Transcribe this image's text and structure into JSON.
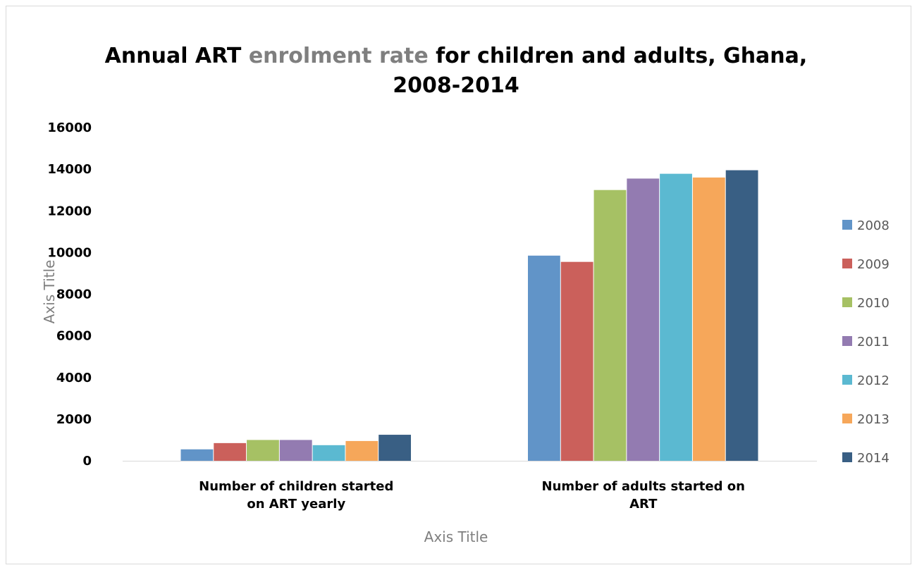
{
  "chart_data": {
    "type": "bar",
    "title_parts": [
      "Annual ART ",
      "enrolment rate",
      "  for children and adults, Ghana,"
    ],
    "title_line2": "2008-2014",
    "xlabel": "Axis Title",
    "ylabel": "Axis Title",
    "ylim": [
      0,
      16000
    ],
    "yticks": [
      "0",
      "2000",
      "4000",
      "6000",
      "8000",
      "10000",
      "12000",
      "14000",
      "16000"
    ],
    "categories": [
      [
        "Number of children started",
        "on ART yearly"
      ],
      [
        "Number of adults started on",
        "ART"
      ]
    ],
    "series": [
      {
        "name": "2008",
        "color": "#6194c8",
        "values": [
          550,
          9850
        ]
      },
      {
        "name": "2009",
        "color": "#cb605b",
        "values": [
          850,
          9550
        ]
      },
      {
        "name": "2010",
        "color": "#a6c164",
        "values": [
          1000,
          13000
        ]
      },
      {
        "name": "2011",
        "color": "#937bb1",
        "values": [
          1000,
          13550
        ]
      },
      {
        "name": "2012",
        "color": "#5bb9d1",
        "values": [
          750,
          13780
        ]
      },
      {
        "name": "2013",
        "color": "#f6a75a",
        "values": [
          950,
          13600
        ]
      },
      {
        "name": "2014",
        "color": "#395f84",
        "values": [
          1250,
          13950
        ]
      }
    ],
    "grid": false,
    "legend_position": "right"
  }
}
